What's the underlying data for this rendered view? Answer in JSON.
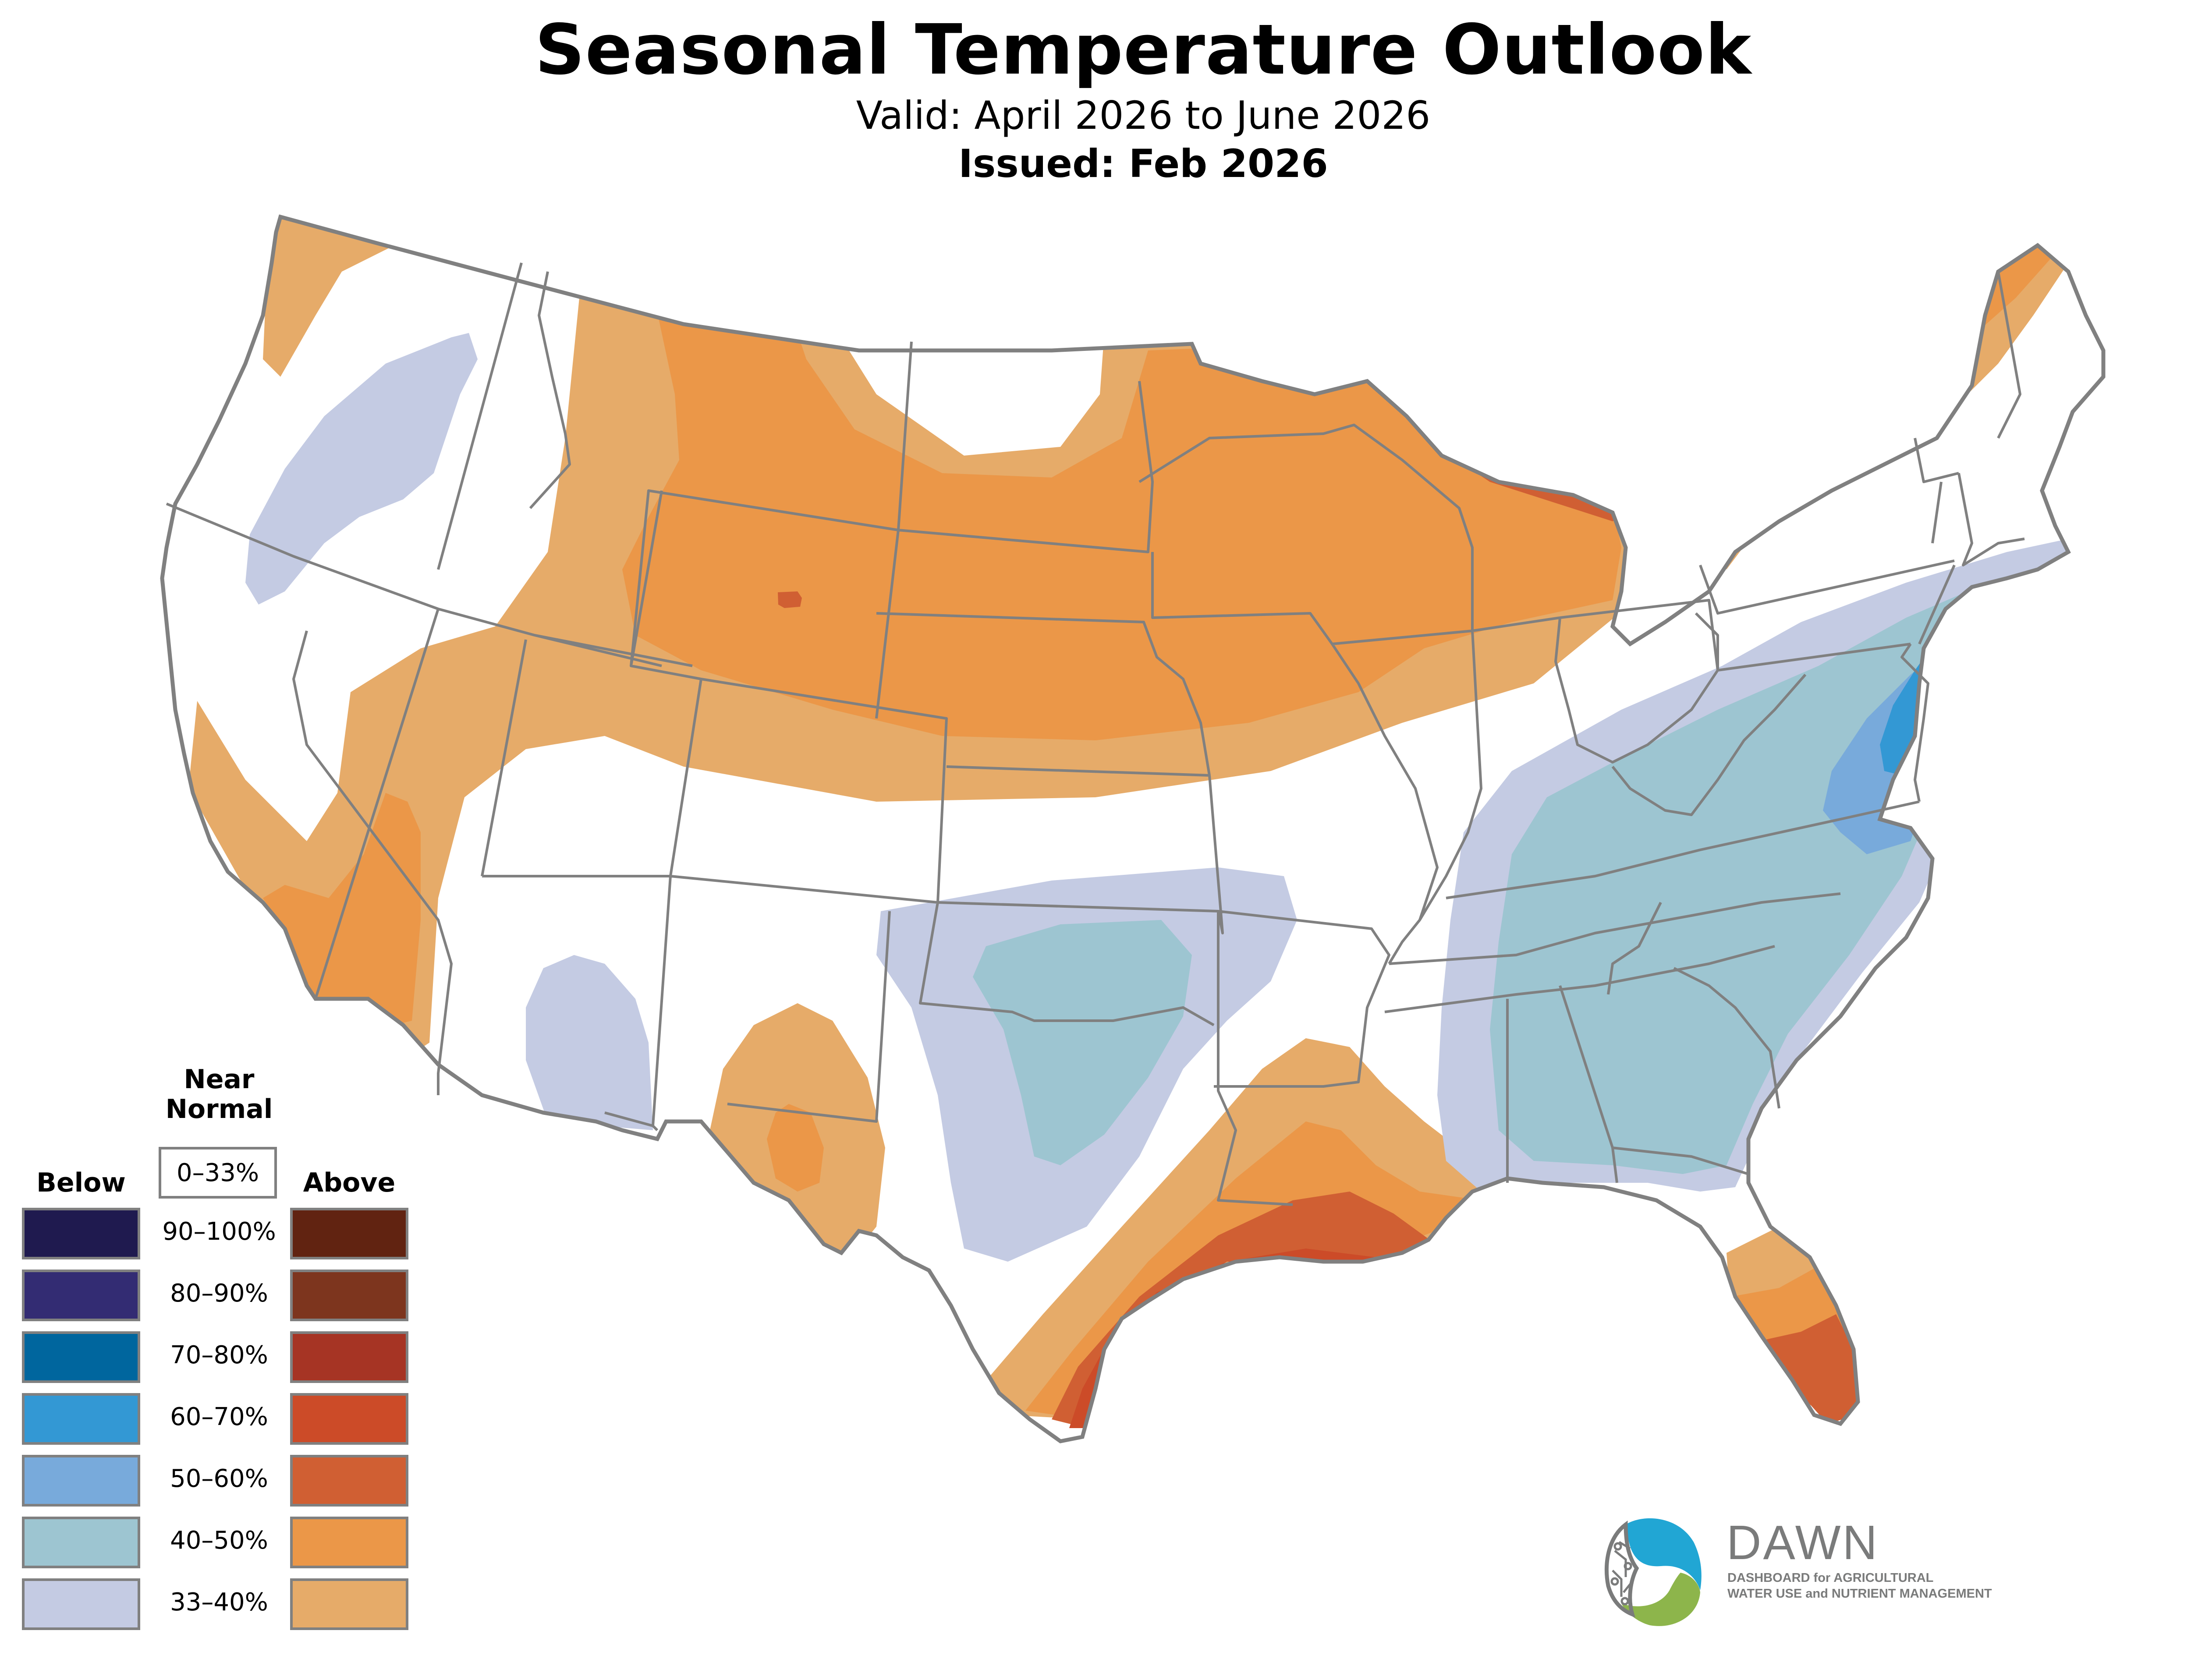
{
  "header": {
    "title": "Seasonal Temperature Outlook",
    "valid": "Valid: April 2026 to June 2026",
    "issued": "Issued: Feb 2026"
  },
  "legend": {
    "near_normal_line1": "Near",
    "near_normal_line2": "Normal",
    "near_normal_range": "0–33%",
    "below_label": "Below",
    "above_label": "Above",
    "rows": [
      {
        "range": "90–100%",
        "below_color": "#1f1a4f",
        "above_color": "#612311"
      },
      {
        "range": "80–90%",
        "below_color": "#332c73",
        "above_color": "#7d351e"
      },
      {
        "range": "70–80%",
        "below_color": "#00669e",
        "above_color": "#a63424"
      },
      {
        "range": "60–70%",
        "below_color": "#3398d4",
        "above_color": "#cc4b28"
      },
      {
        "range": "50–60%",
        "below_color": "#78aadb",
        "above_color": "#d05f33"
      },
      {
        "range": "40–50%",
        "below_color": "#9dc5d1",
        "above_color": "#eb9748"
      },
      {
        "range": "33–40%",
        "below_color": "#c4cbe3",
        "above_color": "#e6ab69"
      }
    ]
  },
  "map": {
    "border_color": "#808080",
    "categories": {
      "above_33_40": "#e6ab69",
      "above_40_50": "#eb9748",
      "above_50_60": "#d05f33",
      "above_60_70": "#cc4b28",
      "below_33_40": "#c4cbe3",
      "below_40_50": "#9dc5d1",
      "below_50_60": "#78aadb",
      "below_60_70": "#3398d4"
    }
  },
  "logo": {
    "name": "DAWN",
    "tagline_line1": "DASHBOARD for AGRICULTURAL",
    "tagline_line2": "WATER USE and NUTRIENT MANAGEMENT",
    "blue": "#21a6d4",
    "green": "#8db54b",
    "gray": "#7a7b7b"
  }
}
